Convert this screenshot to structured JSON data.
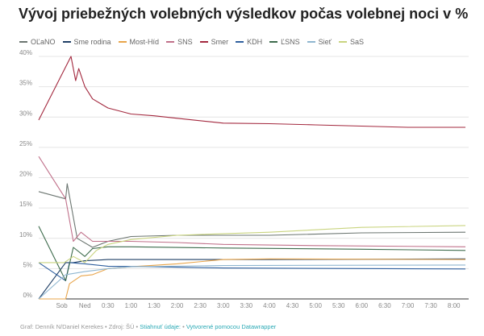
{
  "title": "Vývoj priebežných volebných výsledkov počas volebnej noci v %",
  "footer": {
    "credit": "Graf: Denník N/Daniel Kerekes • Zdroj: ŠÚ • ",
    "download": "Stiahnuť údaje:",
    "sep": " • ",
    "made_with": "Vytvorené pomocou Datawrapper"
  },
  "chart_data": {
    "type": "line",
    "title": "Vývoj priebežných volebných výsledkov počas volebnej noci v %",
    "xlabel": "",
    "ylabel": "",
    "ylim": [
      0,
      40
    ],
    "xlim": [
      "23:00",
      "08:15"
    ],
    "grid": true,
    "legend": "top",
    "y_ticks": [
      "0%",
      "5%",
      "10%",
      "15%",
      "20%",
      "25%",
      "30%",
      "35%",
      "40%"
    ],
    "y_tick_values": [
      0,
      5,
      10,
      15,
      20,
      25,
      30,
      35,
      40
    ],
    "x_ticks": [
      {
        "t": "23:30",
        "label": "Sob"
      },
      {
        "t": "00:00",
        "label": "Ned"
      },
      {
        "t": "00:30",
        "label": "0:30"
      },
      {
        "t": "01:00",
        "label": "1:00"
      },
      {
        "t": "01:30",
        "label": "1:30"
      },
      {
        "t": "02:00",
        "label": "2:00"
      },
      {
        "t": "02:30",
        "label": "2:30"
      },
      {
        "t": "03:00",
        "label": "3:00"
      },
      {
        "t": "03:30",
        "label": "3:30"
      },
      {
        "t": "04:00",
        "label": "4:00"
      },
      {
        "t": "04:30",
        "label": "4:30"
      },
      {
        "t": "05:00",
        "label": "5:00"
      },
      {
        "t": "05:30",
        "label": "5:30"
      },
      {
        "t": "06:00",
        "label": "6:00"
      },
      {
        "t": "06:30",
        "label": "6:30"
      },
      {
        "t": "07:00",
        "label": "7:00"
      },
      {
        "t": "07:30",
        "label": "7:30"
      },
      {
        "t": "08:00",
        "label": "8:00"
      }
    ],
    "series": [
      {
        "name": "OĽaNO",
        "color": "#6b7570",
        "points": [
          [
            "23:00",
            17.7
          ],
          [
            "23:35",
            16.5
          ],
          [
            "23:37",
            19
          ],
          [
            "23:50",
            10
          ],
          [
            "00:10",
            8.5
          ],
          [
            "00:30",
            9.5
          ],
          [
            "01:00",
            10.3
          ],
          [
            "02:00",
            10.5
          ],
          [
            "04:00",
            10.5
          ],
          [
            "06:00",
            10.9
          ],
          [
            "08:15",
            11.0
          ]
        ]
      },
      {
        "name": "Sme rodina",
        "color": "#1f3f66",
        "points": [
          [
            "23:00",
            0
          ],
          [
            "23:35",
            6
          ],
          [
            "23:45",
            6
          ],
          [
            "00:00",
            6.3
          ],
          [
            "00:30",
            6.5
          ],
          [
            "02:00",
            6.5
          ],
          [
            "04:00",
            6.5
          ],
          [
            "08:15",
            6.6
          ]
        ]
      },
      {
        "name": "Most-Híd",
        "color": "#e8a54b",
        "points": [
          [
            "23:00",
            0
          ],
          [
            "23:35",
            0
          ],
          [
            "23:40",
            2.5
          ],
          [
            "23:55",
            3.8
          ],
          [
            "00:10",
            4
          ],
          [
            "00:30",
            5
          ],
          [
            "01:00",
            5.3
          ],
          [
            "02:00",
            5.8
          ],
          [
            "03:00",
            6.5
          ],
          [
            "04:00",
            6.6
          ],
          [
            "08:15",
            6.5
          ]
        ]
      },
      {
        "name": "SNS",
        "color": "#c0708a",
        "points": [
          [
            "23:00",
            23.5
          ],
          [
            "23:35",
            16.5
          ],
          [
            "23:45",
            9.5
          ],
          [
            "23:55",
            11
          ],
          [
            "00:10",
            9.5
          ],
          [
            "00:30",
            9.5
          ],
          [
            "01:00",
            9.5
          ],
          [
            "02:00",
            9.3
          ],
          [
            "03:00",
            9
          ],
          [
            "05:00",
            8.8
          ],
          [
            "08:15",
            8.6
          ]
        ]
      },
      {
        "name": "Smer",
        "color": "#a3283e",
        "points": [
          [
            "23:00",
            29.5
          ],
          [
            "23:42",
            40
          ],
          [
            "23:48",
            36
          ],
          [
            "23:52",
            38
          ],
          [
            "00:00",
            35
          ],
          [
            "00:10",
            33
          ],
          [
            "00:30",
            31.5
          ],
          [
            "01:00",
            30.5
          ],
          [
            "01:30",
            30.2
          ],
          [
            "02:00",
            29.8
          ],
          [
            "03:00",
            29
          ],
          [
            "04:00",
            28.9
          ],
          [
            "05:00",
            28.7
          ],
          [
            "06:00",
            28.5
          ],
          [
            "07:00",
            28.3
          ],
          [
            "08:15",
            28.3
          ]
        ]
      },
      {
        "name": "KDH",
        "color": "#2f5f9e",
        "points": [
          [
            "23:00",
            6
          ],
          [
            "23:35",
            3
          ],
          [
            "23:40",
            6
          ],
          [
            "00:00",
            5.8
          ],
          [
            "00:30",
            5.4
          ],
          [
            "01:30",
            5.3
          ],
          [
            "03:00",
            5.1
          ],
          [
            "08:15",
            4.95
          ]
        ]
      },
      {
        "name": "ĽSNS",
        "color": "#3d6b4c",
        "points": [
          [
            "23:00",
            12
          ],
          [
            "23:35",
            3
          ],
          [
            "23:45",
            8.5
          ],
          [
            "00:00",
            7
          ],
          [
            "00:10",
            8.3
          ],
          [
            "00:30",
            8.6
          ],
          [
            "01:00",
            8.6
          ],
          [
            "03:00",
            8.4
          ],
          [
            "06:00",
            8.2
          ],
          [
            "08:15",
            8.0
          ]
        ]
      },
      {
        "name": "Sieť",
        "color": "#8fb6d0",
        "points": [
          [
            "23:00",
            0
          ],
          [
            "23:35",
            4
          ],
          [
            "00:00",
            4.5
          ],
          [
            "00:30",
            5
          ],
          [
            "01:00",
            5.3
          ],
          [
            "03:00",
            5.5
          ],
          [
            "08:15",
            5.6
          ]
        ]
      },
      {
        "name": "SaS",
        "color": "#c9d47f",
        "points": [
          [
            "23:00",
            6
          ],
          [
            "23:33",
            6
          ],
          [
            "23:45",
            7
          ],
          [
            "00:00",
            6
          ],
          [
            "00:15",
            8
          ],
          [
            "00:30",
            9
          ],
          [
            "01:00",
            9.8
          ],
          [
            "02:00",
            10.5
          ],
          [
            "04:00",
            11
          ],
          [
            "06:00",
            11.8
          ],
          [
            "08:15",
            12.1
          ]
        ]
      }
    ]
  }
}
